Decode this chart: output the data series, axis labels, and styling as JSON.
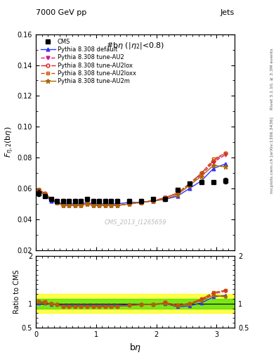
{
  "title_left": "7000 GeV pp",
  "title_right": "Jets",
  "plot_title": "#bη (|η₂|<0.8)",
  "ylabel_main": "$F_{\\eta,2}$(bη)",
  "ylabel_ratio": "Ratio to CMS",
  "xlabel": "bη",
  "right_label_top": "Rivet 3.1.10, ≥ 3.3M events",
  "right_label_bottom": "mcplots.cern.ch [arXiv:1306.3436]",
  "watermark": "CMS_2013_I1265659",
  "ylim_main": [
    0.02,
    0.16
  ],
  "ylim_ratio": [
    0.5,
    2.0
  ],
  "xlim": [
    0.0,
    3.3
  ],
  "cms_x": [
    0.05,
    0.15,
    0.25,
    0.35,
    0.45,
    0.55,
    0.65,
    0.75,
    0.85,
    0.95,
    1.05,
    1.15,
    1.25,
    1.35,
    1.55,
    1.75,
    1.95,
    2.15,
    2.35,
    2.55,
    2.75,
    2.95,
    3.15
  ],
  "cms_y": [
    0.057,
    0.055,
    0.053,
    0.052,
    0.052,
    0.052,
    0.052,
    0.052,
    0.053,
    0.052,
    0.052,
    0.052,
    0.052,
    0.052,
    0.052,
    0.052,
    0.053,
    0.053,
    0.059,
    0.063,
    0.064,
    0.064,
    0.065
  ],
  "cms_yerr": [
    0.002,
    0.001,
    0.001,
    0.001,
    0.001,
    0.001,
    0.001,
    0.001,
    0.001,
    0.001,
    0.001,
    0.001,
    0.001,
    0.001,
    0.001,
    0.001,
    0.001,
    0.001,
    0.001,
    0.001,
    0.001,
    0.001,
    0.002
  ],
  "default_x": [
    0.05,
    0.15,
    0.25,
    0.35,
    0.45,
    0.55,
    0.65,
    0.75,
    0.85,
    0.95,
    1.05,
    1.15,
    1.25,
    1.35,
    1.55,
    1.75,
    1.95,
    2.15,
    2.35,
    2.55,
    2.75,
    2.95,
    3.15
  ],
  "default_y": [
    0.058,
    0.056,
    0.052,
    0.051,
    0.05,
    0.05,
    0.05,
    0.05,
    0.051,
    0.05,
    0.05,
    0.05,
    0.05,
    0.05,
    0.051,
    0.051,
    0.052,
    0.053,
    0.055,
    0.06,
    0.065,
    0.073,
    0.076
  ],
  "au2_x": [
    0.05,
    0.15,
    0.25,
    0.35,
    0.45,
    0.55,
    0.65,
    0.75,
    0.85,
    0.95,
    1.05,
    1.15,
    1.25,
    1.35,
    1.55,
    1.75,
    1.95,
    2.15,
    2.35,
    2.55,
    2.75,
    2.95,
    3.15
  ],
  "au2_y": [
    0.059,
    0.056,
    0.053,
    0.051,
    0.049,
    0.049,
    0.049,
    0.049,
    0.05,
    0.049,
    0.049,
    0.049,
    0.049,
    0.049,
    0.05,
    0.051,
    0.052,
    0.054,
    0.057,
    0.063,
    0.069,
    0.077,
    0.082
  ],
  "au2lox_x": [
    0.05,
    0.15,
    0.25,
    0.35,
    0.45,
    0.55,
    0.65,
    0.75,
    0.85,
    0.95,
    1.05,
    1.15,
    1.25,
    1.35,
    1.55,
    1.75,
    1.95,
    2.15,
    2.35,
    2.55,
    2.75,
    2.95,
    3.15
  ],
  "au2lox_y": [
    0.059,
    0.057,
    0.053,
    0.051,
    0.049,
    0.049,
    0.049,
    0.049,
    0.05,
    0.049,
    0.049,
    0.049,
    0.049,
    0.049,
    0.05,
    0.051,
    0.052,
    0.054,
    0.057,
    0.063,
    0.07,
    0.078,
    0.083
  ],
  "au2loxx_x": [
    0.05,
    0.15,
    0.25,
    0.35,
    0.45,
    0.55,
    0.65,
    0.75,
    0.85,
    0.95,
    1.05,
    1.15,
    1.25,
    1.35,
    1.55,
    1.75,
    1.95,
    2.15,
    2.35,
    2.55,
    2.75,
    2.95,
    3.15
  ],
  "au2loxx_y": [
    0.059,
    0.057,
    0.053,
    0.051,
    0.049,
    0.049,
    0.049,
    0.049,
    0.05,
    0.049,
    0.049,
    0.049,
    0.049,
    0.049,
    0.05,
    0.051,
    0.052,
    0.054,
    0.057,
    0.063,
    0.07,
    0.079,
    0.083
  ],
  "au2m_x": [
    0.05,
    0.15,
    0.25,
    0.35,
    0.45,
    0.55,
    0.65,
    0.75,
    0.85,
    0.95,
    1.05,
    1.15,
    1.25,
    1.35,
    1.55,
    1.75,
    1.95,
    2.15,
    2.35,
    2.55,
    2.75,
    2.95,
    3.15
  ],
  "au2m_y": [
    0.059,
    0.056,
    0.053,
    0.051,
    0.049,
    0.049,
    0.049,
    0.049,
    0.05,
    0.049,
    0.049,
    0.049,
    0.049,
    0.049,
    0.05,
    0.051,
    0.052,
    0.053,
    0.056,
    0.062,
    0.068,
    0.075,
    0.074
  ],
  "color_default": "#3333ff",
  "color_au2": "#dd1188",
  "color_au2lox": "#dd2222",
  "color_au2loxx": "#cc5500",
  "color_au2m": "#aa6600",
  "green_band": [
    0.9,
    1.1
  ],
  "yellow_band": [
    0.8,
    1.2
  ]
}
